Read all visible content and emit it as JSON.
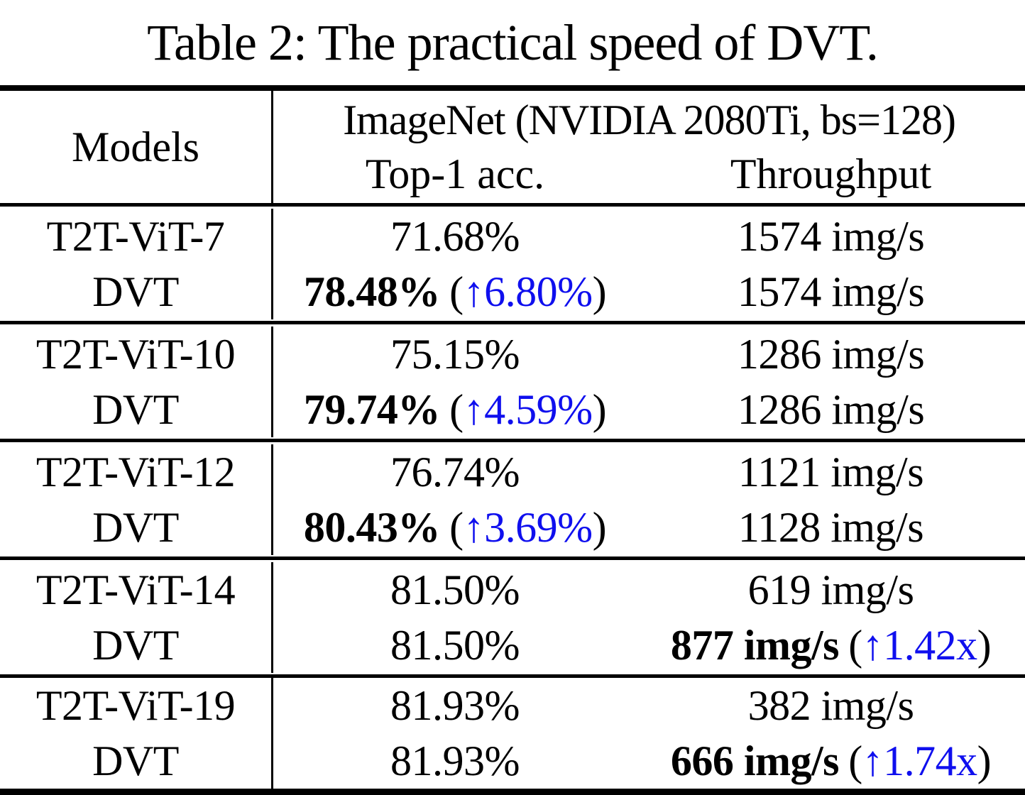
{
  "title": "Table 2: The practical speed of DVT.",
  "colors": {
    "accent_blue": "#0f0fee",
    "text": "#000000"
  },
  "symbols": {
    "paren_open": "(",
    "paren_close": ")"
  },
  "header": {
    "models": "Models",
    "dataset": "ImageNet (NVIDIA 2080Ti, bs=128)",
    "acc_col": "Top-1 acc.",
    "thr_col": "Throughput"
  },
  "table": {
    "groups": [
      {
        "rows": [
          {
            "model": "T2T-ViT-7",
            "acc": "71.68%",
            "thr": "1574 img/s"
          },
          {
            "model": "DVT",
            "acc_main": "78.48%",
            "acc_gain": "↑6.80%",
            "thr": "1574 img/s"
          }
        ]
      },
      {
        "rows": [
          {
            "model": "T2T-ViT-10",
            "acc": "75.15%",
            "thr": "1286 img/s"
          },
          {
            "model": "DVT",
            "acc_main": "79.74%",
            "acc_gain": "↑4.59%",
            "thr": "1286 img/s"
          }
        ]
      },
      {
        "rows": [
          {
            "model": "T2T-ViT-12",
            "acc": "76.74%",
            "thr": "1121 img/s"
          },
          {
            "model": "DVT",
            "acc_main": "80.43%",
            "acc_gain": "↑3.69%",
            "thr": "1128 img/s"
          }
        ]
      },
      {
        "rows": [
          {
            "model": "T2T-ViT-14",
            "acc": "81.50%",
            "thr": "619 img/s"
          },
          {
            "model": "DVT",
            "acc": "81.50%",
            "thr_main": "877 img/s",
            "thr_gain": "↑1.42x"
          }
        ]
      },
      {
        "rows": [
          {
            "model": "T2T-ViT-19",
            "acc": "81.93%",
            "thr": "382 img/s"
          },
          {
            "model": "DVT",
            "acc": "81.93%",
            "thr_main": "666 img/s",
            "thr_gain": "↑1.74x"
          }
        ]
      }
    ]
  }
}
